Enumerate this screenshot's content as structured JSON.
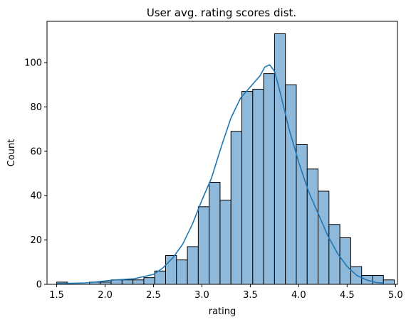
{
  "chart_data": {
    "type": "bar",
    "title": "User avg. rating scores dist.",
    "xlabel": "rating",
    "ylabel": "Count",
    "xlim": [
      1.4,
      5.02
    ],
    "ylim": [
      0,
      118.6
    ],
    "xticks": [
      1.5,
      2.0,
      2.5,
      3.0,
      3.5,
      4.0,
      4.5,
      5.0
    ],
    "xtick_labels": [
      "1.5",
      "2.0",
      "2.5",
      "3.0",
      "3.5",
      "4.0",
      "4.5",
      "5.0"
    ],
    "yticks": [
      0,
      20,
      40,
      60,
      80,
      100
    ],
    "ytick_labels": [
      "0",
      "20",
      "40",
      "60",
      "80",
      "100"
    ],
    "bin_start": 1.5,
    "bin_width": 0.1125,
    "values": [
      1,
      0,
      0,
      1,
      1,
      2,
      2,
      2,
      3,
      6,
      13,
      11,
      17,
      35,
      46,
      38,
      69,
      87,
      88,
      95,
      113,
      90,
      63,
      52,
      42,
      27,
      21,
      8,
      4,
      4,
      2
    ],
    "kde": {
      "x": [
        1.5,
        1.8,
        2.0,
        2.1,
        2.3,
        2.5,
        2.6,
        2.7,
        2.8,
        2.9,
        3.0,
        3.1,
        3.2,
        3.3,
        3.4,
        3.5,
        3.6,
        3.65,
        3.7,
        3.75,
        3.8,
        3.9,
        4.0,
        4.1,
        4.2,
        4.3,
        4.4,
        4.5,
        4.6,
        4.7,
        4.8,
        4.88
      ],
      "y": [
        0.3,
        0.6,
        1.5,
        2.0,
        2.5,
        4.5,
        7.5,
        12.0,
        18.0,
        27.0,
        38.0,
        48.0,
        62.0,
        75.0,
        84.0,
        89.0,
        94.0,
        98.0,
        99.0,
        96.0,
        88.0,
        70.0,
        55.0,
        42.0,
        32.0,
        22.0,
        14.0,
        8.0,
        4.0,
        2.0,
        0.8,
        0.5
      ]
    },
    "bar_color": "#8fb9da",
    "edge_color": "#000000",
    "kde_color": "#1f77b4",
    "grid": false
  }
}
